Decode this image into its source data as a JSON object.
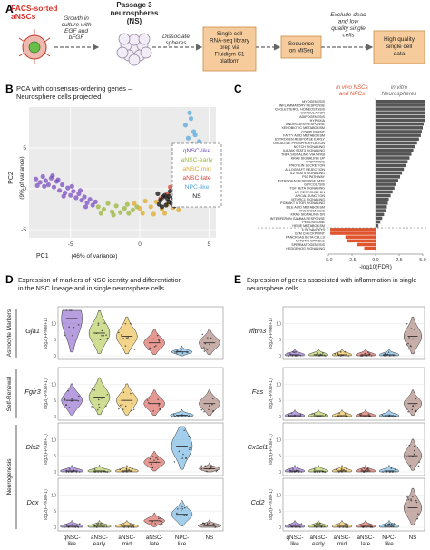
{
  "panel_a": {
    "letter": "A",
    "facs_title": "FACS-sorted\naNSCs",
    "growth_label": "Growth in\nculture with\nEGF and\nbFGF",
    "passage_label": "Passage 3\nneurospheres\n(NS)",
    "dissociate_label": "Dissociate\nspheres",
    "library_box": "Single cell\nRNA-seq library\nprep via\nFluidigm C1\nplatform",
    "miseq_box": "Sequence\non MiSeq",
    "exclude_label": "Exclude dead\nand low\nquality single\ncells",
    "hq_box": "High quality\nsingle cell\ndata",
    "colors": {
      "box_fill": "#f6cc9c",
      "box_stroke": "#c88a4a",
      "facs_title": "#d6322a"
    }
  },
  "panel_b": {
    "letter": "B",
    "title": "PCA with consensus-ordering genes –\nNeurosphere cells projected",
    "xlabel": "PC1",
    "xlabel_note": "(46% of variance)",
    "ylabel": "PC2",
    "ylabel_note": "(9% of variance)",
    "x_ticks": [
      "-5",
      "0",
      "5"
    ],
    "y_ticks": [
      "-5",
      "0",
      "5"
    ],
    "legend": [
      {
        "label": "qNSC-like",
        "color": "#7b4fc2"
      },
      {
        "label": "aNSC-early",
        "color": "#9bb53a"
      },
      {
        "label": "aNSC-mid",
        "color": "#e0a92a"
      },
      {
        "label": "aNSC-late",
        "color": "#d2463a"
      },
      {
        "label": "NPC-like",
        "color": "#5aa8dc"
      },
      {
        "label": "NS",
        "color": "#111111"
      }
    ]
  },
  "panel_c": {
    "letter": "C",
    "header_invivo": "in vivo NSCs\nand NPCs",
    "header_invitro": "in vitro\nNeurospheres",
    "xlabel": "-log10(FDR)",
    "x_ticks": [
      "-5.0",
      "-2.5",
      "0.0",
      "2.5",
      "5.0"
    ],
    "colors": {
      "invivo": "#e0552e",
      "invitro": "#555555"
    }
  },
  "panel_d": {
    "letter": "D",
    "title": "Expression of markers of NSC identity and differentiation\nin the NSC lineage and in single neurosphere cells",
    "groups": [
      {
        "label": "Astrocyte Markers"
      },
      {
        "label": "Self-Renewal"
      },
      {
        "label": "Neurogenesis"
      }
    ],
    "genes": [
      "Gja1",
      "Fgfr3",
      "Dlx2",
      "Dcx"
    ],
    "ylabel": "log2(FPKM+1)",
    "y_ticks": [
      "0",
      "5",
      "10"
    ]
  },
  "panel_e": {
    "letter": "E",
    "title": "Expression of genes associated with inflammation in single\nneurosphere cells",
    "genes": [
      "Ifitm3",
      "Fas",
      "Cx3cl1",
      "Ccl2"
    ],
    "ylabel": "log2(FPKM+1)",
    "y_ticks": [
      "0",
      "5",
      "10"
    ]
  },
  "violin_categories": [
    {
      "label": "qNSC-\nlike",
      "color": "#7b4fc2"
    },
    {
      "label": "aNSC-\nearly",
      "color": "#a8c23a"
    },
    {
      "label": "aNSC-\nmid",
      "color": "#e8b02c"
    },
    {
      "label": "aNSC-\nlate",
      "color": "#d2463a"
    },
    {
      "label": "NPC-\nlike",
      "color": "#5aa8dc"
    },
    {
      "label": "NS",
      "color": "#9a6b62"
    }
  ],
  "chart_data": [
    {
      "type": "scatter",
      "title": "PCA with consensus-ordering genes – Neurosphere cells projected",
      "xlabel": "PC1 (46% of variance)",
      "ylabel": "PC2 (9% of variance)",
      "xlim": [
        -8,
        5.5
      ],
      "ylim": [
        -6,
        10
      ],
      "legend_position": "right",
      "series": [
        {
          "name": "qNSC-like",
          "color": "#7b4fc2",
          "points": [
            [
              -7.5,
              1.2
            ],
            [
              -7.2,
              0.8
            ],
            [
              -7,
              1.5
            ],
            [
              -6.8,
              1
            ],
            [
              -6.6,
              0.5
            ],
            [
              -6.4,
              1.3
            ],
            [
              -6.2,
              0.2
            ],
            [
              -6,
              0.9
            ],
            [
              -5.8,
              -0.2
            ],
            [
              -5.6,
              0.5
            ],
            [
              -5.4,
              -0.5
            ],
            [
              -5.2,
              0.1
            ],
            [
              -5,
              -0.8
            ],
            [
              -4.8,
              -0.3
            ],
            [
              -4.6,
              -1.1
            ],
            [
              -4.4,
              -0.6
            ],
            [
              -4.2,
              -1.4
            ],
            [
              -4,
              -1.0
            ],
            [
              -3.8,
              -1.7
            ],
            [
              -3.6,
              -1.3
            ],
            [
              -3.4,
              -2.0
            ],
            [
              -3.2,
              -1.6
            ],
            [
              -6.9,
              0.3
            ],
            [
              -6.3,
              1.6
            ],
            [
              -5.9,
              1.1
            ],
            [
              -5.5,
              -0.9
            ],
            [
              -4.9,
              0.3
            ],
            [
              -4.3,
              -0.2
            ],
            [
              -7.4,
              0.4
            ],
            [
              -3.9,
              -2.2
            ]
          ]
        },
        {
          "name": "aNSC-early",
          "color": "#9bb53a",
          "points": [
            [
              -3,
              -2.2
            ],
            [
              -2.6,
              -2.5
            ],
            [
              -2.3,
              -1.8
            ],
            [
              -2,
              -2.8
            ],
            [
              -1.7,
              -2.1
            ],
            [
              -1.4,
              -2.9
            ],
            [
              -1.1,
              -2.4
            ],
            [
              -0.8,
              -3.0
            ],
            [
              -0.5,
              -2.6
            ],
            [
              -0.2,
              -2.2
            ],
            [
              -2.8,
              -3.0
            ],
            [
              -1.9,
              -3.2
            ],
            [
              -0.9,
              -1.9
            ]
          ]
        },
        {
          "name": "aNSC-mid",
          "color": "#e0a92a",
          "points": [
            [
              -0.4,
              -1.8
            ],
            [
              0,
              -2.4
            ],
            [
              0.4,
              -1.5
            ],
            [
              0.8,
              -2.2
            ],
            [
              1.2,
              -1.6
            ],
            [
              1.6,
              -2.5
            ],
            [
              2,
              -1.9
            ],
            [
              2.4,
              -2.3
            ],
            [
              0.2,
              -3.0
            ],
            [
              1,
              -3.1
            ],
            [
              1.8,
              -3.0
            ],
            [
              2.8,
              -2.6
            ]
          ]
        },
        {
          "name": "aNSC-late",
          "color": "#d2463a",
          "points": [
            [
              1.5,
              -1.2
            ],
            [
              2,
              -0.6
            ],
            [
              2.5,
              -1.0
            ],
            [
              3,
              -0.3
            ],
            [
              3.3,
              0.4
            ],
            [
              3.6,
              1.0
            ],
            [
              3.2,
              1.8
            ],
            [
              2.8,
              0.8
            ],
            [
              3.8,
              -0.8
            ],
            [
              4,
              0.3
            ],
            [
              3.5,
              -1.6
            ],
            [
              2.2,
              0.2
            ],
            [
              4.2,
              1.4
            ],
            [
              3.9,
              2.2
            ]
          ]
        },
        {
          "name": "NPC-like",
          "color": "#5aa8dc",
          "points": [
            [
              3.2,
              3.0
            ],
            [
              3.6,
              3.8
            ],
            [
              3.4,
              4.6
            ],
            [
              3.8,
              5.4
            ],
            [
              3.5,
              6.2
            ],
            [
              3.9,
              7.0
            ],
            [
              3.3,
              7.8
            ],
            [
              3.7,
              8.6
            ],
            [
              4.1,
              4.2
            ],
            [
              4.3,
              5.8
            ],
            [
              3,
              5.0
            ],
            [
              4,
              6.6
            ],
            [
              3.6,
              9.3
            ]
          ]
        },
        {
          "name": "NS",
          "color": "#111111",
          "points": [
            [
              1.5,
              -1.4
            ],
            [
              1.8,
              -0.8
            ],
            [
              2.1,
              -1.6
            ],
            [
              2.4,
              -1.1
            ],
            [
              2.7,
              -1.7
            ],
            [
              3,
              -1.2
            ],
            [
              1.3,
              -0.6
            ],
            [
              1.9,
              -2.0
            ],
            [
              2.6,
              -0.5
            ],
            [
              3.2,
              -1.9
            ],
            [
              2.2,
              -0.3
            ],
            [
              1.6,
              -2.2
            ],
            [
              2.9,
              -0.9
            ],
            [
              3.4,
              -1.4
            ],
            [
              2.0,
              -1.2
            ],
            [
              2.5,
              -2.1
            ],
            [
              1.7,
              -1.0
            ],
            [
              2.8,
              -1.5
            ],
            [
              3.1,
              -0.7
            ],
            [
              2.3,
              -1.8
            ],
            [
              1.4,
              -1.9
            ],
            [
              2.6,
              -1.3
            ],
            [
              2.1,
              -0.9
            ],
            [
              3.3,
              -1.1
            ]
          ]
        }
      ]
    },
    {
      "type": "bar",
      "orientation": "horizontal",
      "xlabel": "-log10(FDR)",
      "xlim": [
        -5,
        5
      ],
      "categories": [
        "MYOGENESIS",
        "INFLAMMATORY RESPONSE",
        "CHOLESTEROL HOMEOSTASIS",
        "COAGULATION",
        "ADIPOGENESIS",
        "HYPOXIA",
        "ANDROGEN RESPONSE",
        "XENOBIOTIC METABOLISM",
        "COMPLEMENT",
        "FATTY ACID METABOLISM",
        "ESTROGEN RESPONSE EARLY",
        "OXIDATIVE PHOSPHORYLATION",
        "NOTCH SIGNALING",
        "IL6 JAK STAT3 SIGNALING",
        "TNFA SIGNALING VIA NFKB",
        "KRAS SIGNALING UP",
        "APOPTOSIS",
        "PROTEIN SECRETION",
        "ALLOGRAFT REJECTION",
        "IL2 STAT5 SIGNALING",
        "P53 PATHWAY",
        "ESTROGEN RESPONSE LATE",
        "GLYCOLYSIS",
        "TGF BETA SIGNALING",
        "UV RESPONSE DN",
        "APICAL JUNCTION",
        "MTORC1 SIGNALING",
        "PI3K AKT MTOR SIGNALING",
        "BILE ACID METABOLISM",
        "ANGIOGENESIS",
        "KRAS SIGNALING DN",
        "INTERFERON GAMMA RESPONSE",
        "PEROXISOME",
        "HEME METABOLISM",
        "E2F TARGETS",
        "G2M CHECKPOINT",
        "PANCREAS BETA CELLS",
        "MITOTIC SPINDLE",
        "SPERMATOGENESIS",
        "HEDGEHOG SIGNALING"
      ],
      "values": [
        5.2,
        5.2,
        5.2,
        5.2,
        5.2,
        5.2,
        5.1,
        5.0,
        4.9,
        4.8,
        4.6,
        4.4,
        4.2,
        4.0,
        3.8,
        3.6,
        3.4,
        3.2,
        3.0,
        2.8,
        2.6,
        2.4,
        2.2,
        2.0,
        1.8,
        1.6,
        1.4,
        1.3,
        1.2,
        1.1,
        0.9,
        0.7,
        0.5,
        0.3,
        -4.8,
        -4.8,
        -3.2,
        -3.0,
        -2.0,
        -1.2
      ]
    },
    {
      "type": "violin",
      "title": "Expression of markers of NSC identity and differentiation in the NSC lineage and in single neurosphere cells",
      "ylabel": "log2(FPKM+1)",
      "ylim": [
        0,
        14
      ],
      "categories": [
        "qNSC-like",
        "aNSC-early",
        "aNSC-mid",
        "aNSC-late",
        "NPC-like",
        "NS"
      ],
      "series": [
        {
          "name": "Gja1",
          "values": [
            11.5,
            7,
            6,
            4,
            1.2,
            4
          ]
        },
        {
          "name": "Fgfr3",
          "values": [
            5,
            6,
            5,
            4,
            0.4,
            4
          ]
        },
        {
          "name": "Dlx2",
          "values": [
            0.3,
            0.3,
            0.3,
            3,
            8,
            1
          ]
        },
        {
          "name": "Dcx",
          "values": [
            0.3,
            0.3,
            0.3,
            2,
            4,
            0.5
          ]
        }
      ]
    },
    {
      "type": "violin",
      "title": "Expression of genes associated with inflammation in single neurosphere cells",
      "ylabel": "log2(FPKM+1)",
      "ylim": [
        0,
        14
      ],
      "categories": [
        "qNSC-like",
        "aNSC-early",
        "aNSC-mid",
        "aNSC-late",
        "NPC-like",
        "NS"
      ],
      "series": [
        {
          "name": "Ifitm3",
          "values": [
            0.3,
            0.3,
            0.3,
            0.3,
            0.3,
            6
          ]
        },
        {
          "name": "Fas",
          "values": [
            0.3,
            0.3,
            0.3,
            0.3,
            0.3,
            4
          ]
        },
        {
          "name": "Cx3cl1",
          "values": [
            0.3,
            0.3,
            0.3,
            0.3,
            0.3,
            5
          ]
        },
        {
          "name": "Ccl2",
          "values": [
            0.3,
            0.3,
            0.3,
            0.3,
            0.3,
            6
          ]
        }
      ]
    }
  ]
}
